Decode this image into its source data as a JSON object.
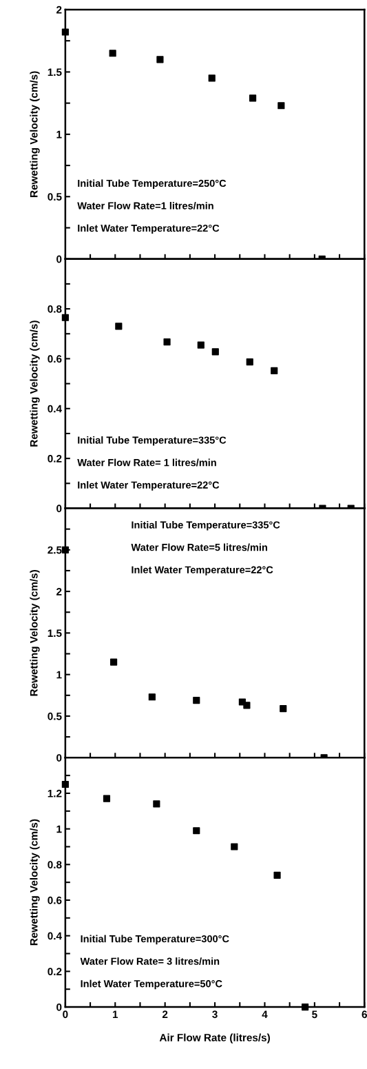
{
  "chart_data": [
    {
      "type": "scatter",
      "ylabel": "Rewetting Velocity (cm/s)",
      "x": [
        0,
        0.95,
        1.9,
        2.94,
        3.76,
        4.33,
        5.15
      ],
      "values": [
        1.82,
        1.65,
        1.6,
        1.45,
        1.29,
        1.23,
        0
      ],
      "color": "#000000",
      "marker": "square",
      "xlim": [
        0,
        6
      ],
      "xticks": [
        0,
        {
          "value": 0.5,
          "label": null
        },
        1,
        {
          "value": 1.5,
          "label": null
        },
        2,
        {
          "value": 2.5,
          "label": null
        },
        3,
        {
          "value": 3.5,
          "label": null
        },
        4,
        {
          "value": 4.5,
          "label": null
        },
        5,
        {
          "value": 5.5,
          "label": null
        },
        6
      ],
      "ylim": [
        0,
        2
      ],
      "yticks": [
        0,
        {
          "value": 0.25,
          "label": null
        },
        0.5,
        {
          "value": 0.75,
          "label": null
        },
        1,
        {
          "value": 1.25,
          "label": null
        },
        1.5,
        {
          "value": 1.75,
          "label": null
        },
        2
      ],
      "tick_labels": "y",
      "annotations": [
        "Initial Tube Temperature=250°C",
        "Water Flow Rate=1 litres/min",
        "Inlet Water Temperature=22°C"
      ]
    },
    {
      "type": "scatter",
      "ylabel": "Rewetting Velocity (cm/s)",
      "x": [
        0,
        1.07,
        2.04,
        2.72,
        3.01,
        3.7,
        4.19,
        5.16,
        5.73
      ],
      "values": [
        0.765,
        0.73,
        0.667,
        0.655,
        0.628,
        0.587,
        0.552,
        0,
        0
      ],
      "color": "#000000",
      "marker": "square",
      "xlim": [
        0,
        6
      ],
      "xticks": [
        0,
        {
          "value": 0.5,
          "label": null
        },
        1,
        {
          "value": 1.5,
          "label": null
        },
        2,
        {
          "value": 2.5,
          "label": null
        },
        3,
        {
          "value": 3.5,
          "label": null
        },
        4,
        {
          "value": 4.5,
          "label": null
        },
        5,
        {
          "value": 5.5,
          "label": null
        },
        6
      ],
      "ylim": [
        0,
        1
      ],
      "yticks": [
        0,
        {
          "value": 0.1,
          "label": null
        },
        0.2,
        {
          "value": 0.3,
          "label": null
        },
        0.4,
        {
          "value": 0.5,
          "label": null
        },
        0.6,
        {
          "value": 0.7,
          "label": null
        },
        0.8,
        {
          "value": 0.9,
          "label": null
        }
      ],
      "tick_labels": "y",
      "annotations": [
        "Initial Tube Temperature=335°C",
        "Water Flow Rate= 1 litres/min",
        "Inlet Water Temperature=22°C"
      ]
    },
    {
      "type": "scatter",
      "ylabel": "Rewetting Velocity (cm/s)",
      "x": [
        0,
        0.97,
        1.74,
        2.63,
        3.55,
        3.64,
        4.37,
        5.19
      ],
      "values": [
        2.5,
        1.15,
        0.73,
        0.69,
        0.67,
        0.63,
        0.59,
        0
      ],
      "color": "#000000",
      "marker": "square",
      "xlim": [
        0,
        6
      ],
      "xticks": [
        0,
        {
          "value": 0.5,
          "label": null
        },
        1,
        {
          "value": 1.5,
          "label": null
        },
        2,
        {
          "value": 2.5,
          "label": null
        },
        3,
        {
          "value": 3.5,
          "label": null
        },
        4,
        {
          "value": 4.5,
          "label": null
        },
        5,
        {
          "value": 5.5,
          "label": null
        },
        6
      ],
      "ylim": [
        0,
        3
      ],
      "yticks": [
        0,
        {
          "value": 0.25,
          "label": null
        },
        0.5,
        {
          "value": 0.75,
          "label": null
        },
        1,
        {
          "value": 1.25,
          "label": null
        },
        1.5,
        {
          "value": 1.75,
          "label": null
        },
        2,
        {
          "value": 2.25,
          "label": null
        },
        2.5,
        {
          "value": 2.75,
          "label": null
        }
      ],
      "tick_labels": "y",
      "annotations": [
        "Initial Tube Temperature=335°C",
        "Water Flow Rate=5 litres/min",
        "Inlet Water Temperature=22°C"
      ]
    },
    {
      "type": "scatter",
      "xlabel": "Air Flow Rate (litres/s)",
      "ylabel": "Rewetting Velocity (cm/s)",
      "x": [
        0,
        0.83,
        1.83,
        2.63,
        3.39,
        4.25,
        4.81
      ],
      "values": [
        1.25,
        1.17,
        1.14,
        0.99,
        0.9,
        0.74,
        0
      ],
      "color": "#000000",
      "marker": "square",
      "xlim": [
        0,
        6
      ],
      "xticks": [
        0,
        {
          "value": 0.5,
          "label": null
        },
        1,
        {
          "value": 1.5,
          "label": null
        },
        2,
        {
          "value": 2.5,
          "label": null
        },
        3,
        {
          "value": 3.5,
          "label": null
        },
        4,
        {
          "value": 4.5,
          "label": null
        },
        5,
        {
          "value": 5.5,
          "label": null
        },
        6
      ],
      "ylim": [
        0,
        1.4
      ],
      "yticks": [
        0,
        {
          "value": 0.1,
          "label": null
        },
        0.2,
        {
          "value": 0.3,
          "label": null
        },
        0.4,
        {
          "value": 0.5,
          "label": null
        },
        0.6,
        {
          "value": 0.7,
          "label": null
        },
        0.8,
        {
          "value": 0.9,
          "label": null
        },
        1,
        {
          "value": 1.1,
          "label": null
        },
        1.2,
        {
          "value": 1.3,
          "label": null
        }
      ],
      "annotations": [
        "Initial Tube Temperature=300°C",
        "Water Flow Rate= 3 litres/min",
        "Inlet Water Temperature=50°C"
      ]
    }
  ]
}
